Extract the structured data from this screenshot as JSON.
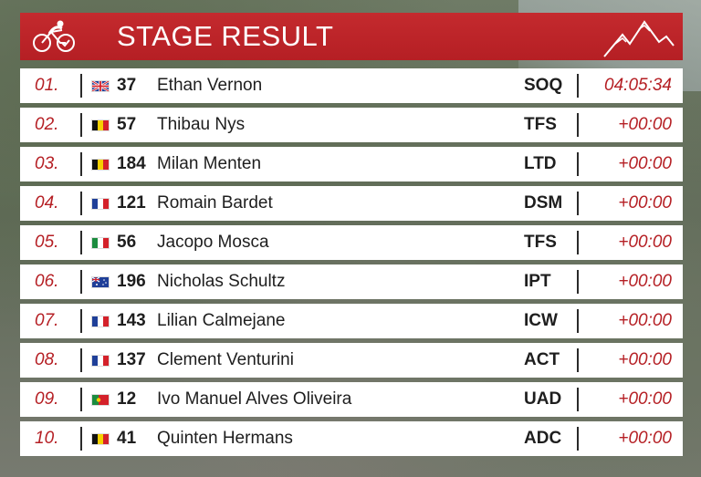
{
  "header": {
    "title": "STAGE RESULT"
  },
  "rows": [
    {
      "pos": "01.",
      "flag": "uk",
      "number": "37",
      "name": "Ethan Vernon",
      "team": "SOQ",
      "time": "04:05:34"
    },
    {
      "pos": "02.",
      "flag": "be",
      "number": "57",
      "name": "Thibau Nys",
      "team": "TFS",
      "time": "+00:00"
    },
    {
      "pos": "03.",
      "flag": "be",
      "number": "184",
      "name": "Milan Menten",
      "team": "LTD",
      "time": "+00:00"
    },
    {
      "pos": "04.",
      "flag": "fr",
      "number": "121",
      "name": "Romain Bardet",
      "team": "DSM",
      "time": "+00:00"
    },
    {
      "pos": "05.",
      "flag": "it",
      "number": "56",
      "name": "Jacopo Mosca",
      "team": "TFS",
      "time": "+00:00"
    },
    {
      "pos": "06.",
      "flag": "au",
      "number": "196",
      "name": "Nicholas Schultz",
      "team": "IPT",
      "time": "+00:00"
    },
    {
      "pos": "07.",
      "flag": "fr",
      "number": "143",
      "name": "Lilian Calmejane",
      "team": "ICW",
      "time": "+00:00"
    },
    {
      "pos": "08.",
      "flag": "fr",
      "number": "137",
      "name": "Clement Venturini",
      "team": "ACT",
      "time": "+00:00"
    },
    {
      "pos": "09.",
      "flag": "pt",
      "number": "12",
      "name": "Ivo Manuel Alves Oliveira",
      "team": "UAD",
      "time": "+00:00"
    },
    {
      "pos": "10.",
      "flag": "be",
      "number": "41",
      "name": "Quinten Hermans",
      "team": "ADC",
      "time": "+00:00"
    }
  ],
  "colors": {
    "accent": "#b51f24",
    "row_bg": "#ffffff",
    "text": "#1e1e1e"
  }
}
